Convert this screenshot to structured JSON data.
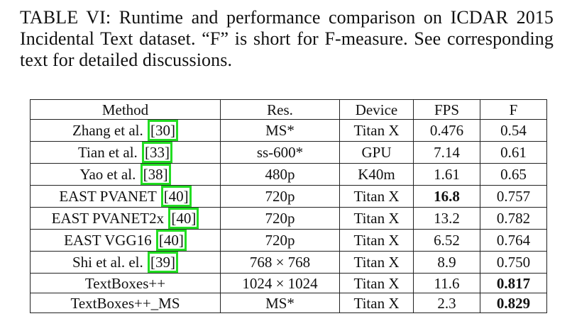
{
  "caption": "TABLE VI: Runtime and performance comparison on ICDAR 2015 Incidental Text dataset. “F” is short for F-measure. See corresponding text for detailed discussions.",
  "table": {
    "headers": [
      "Method",
      "Res.",
      "Device",
      "FPS",
      "F"
    ],
    "rows": [
      {
        "method": "Zhang et al.",
        "cite": "[30]",
        "res": "MS*",
        "device": "Titan X",
        "fps": "0.476",
        "f": "0.54",
        "bold": []
      },
      {
        "method": "Tian et al.",
        "cite": "[33]",
        "res": "ss-600*",
        "device": "GPU",
        "fps": "7.14",
        "f": "0.61",
        "bold": []
      },
      {
        "method": "Yao et al.",
        "cite": "[38]",
        "res": "480p",
        "device": "K40m",
        "fps": "1.61",
        "f": "0.65",
        "bold": []
      },
      {
        "method": "EAST PVANET",
        "cite": "[40]",
        "res": "720p",
        "device": "Titan X",
        "fps": "16.8",
        "f": "0.757",
        "bold": [
          "fps"
        ]
      },
      {
        "method": "EAST PVANET2x",
        "cite": "[40]",
        "res": "720p",
        "device": "Titan X",
        "fps": "13.2",
        "f": "0.782",
        "bold": []
      },
      {
        "method": "EAST VGG16",
        "cite": "[40]",
        "res": "720p",
        "device": "Titan X",
        "fps": "6.52",
        "f": "0.764",
        "bold": []
      },
      {
        "method": "Shi et al. el.",
        "cite": "[39]",
        "res": "768 × 768",
        "device": "Titan X",
        "fps": "8.9",
        "f": "0.750",
        "bold": []
      },
      {
        "method": "TextBoxes++",
        "cite": "",
        "res": "1024 × 1024",
        "device": "Titan X",
        "fps": "11.6",
        "f": "0.817",
        "bold": [
          "f"
        ]
      },
      {
        "method": "TextBoxes++_MS",
        "cite": "",
        "res": "MS*",
        "device": "Titan X",
        "fps": "2.3",
        "f": "0.829",
        "bold": [
          "f"
        ]
      }
    ]
  },
  "colors": {
    "citation_highlight": "#22dd22",
    "border": "#222222"
  }
}
